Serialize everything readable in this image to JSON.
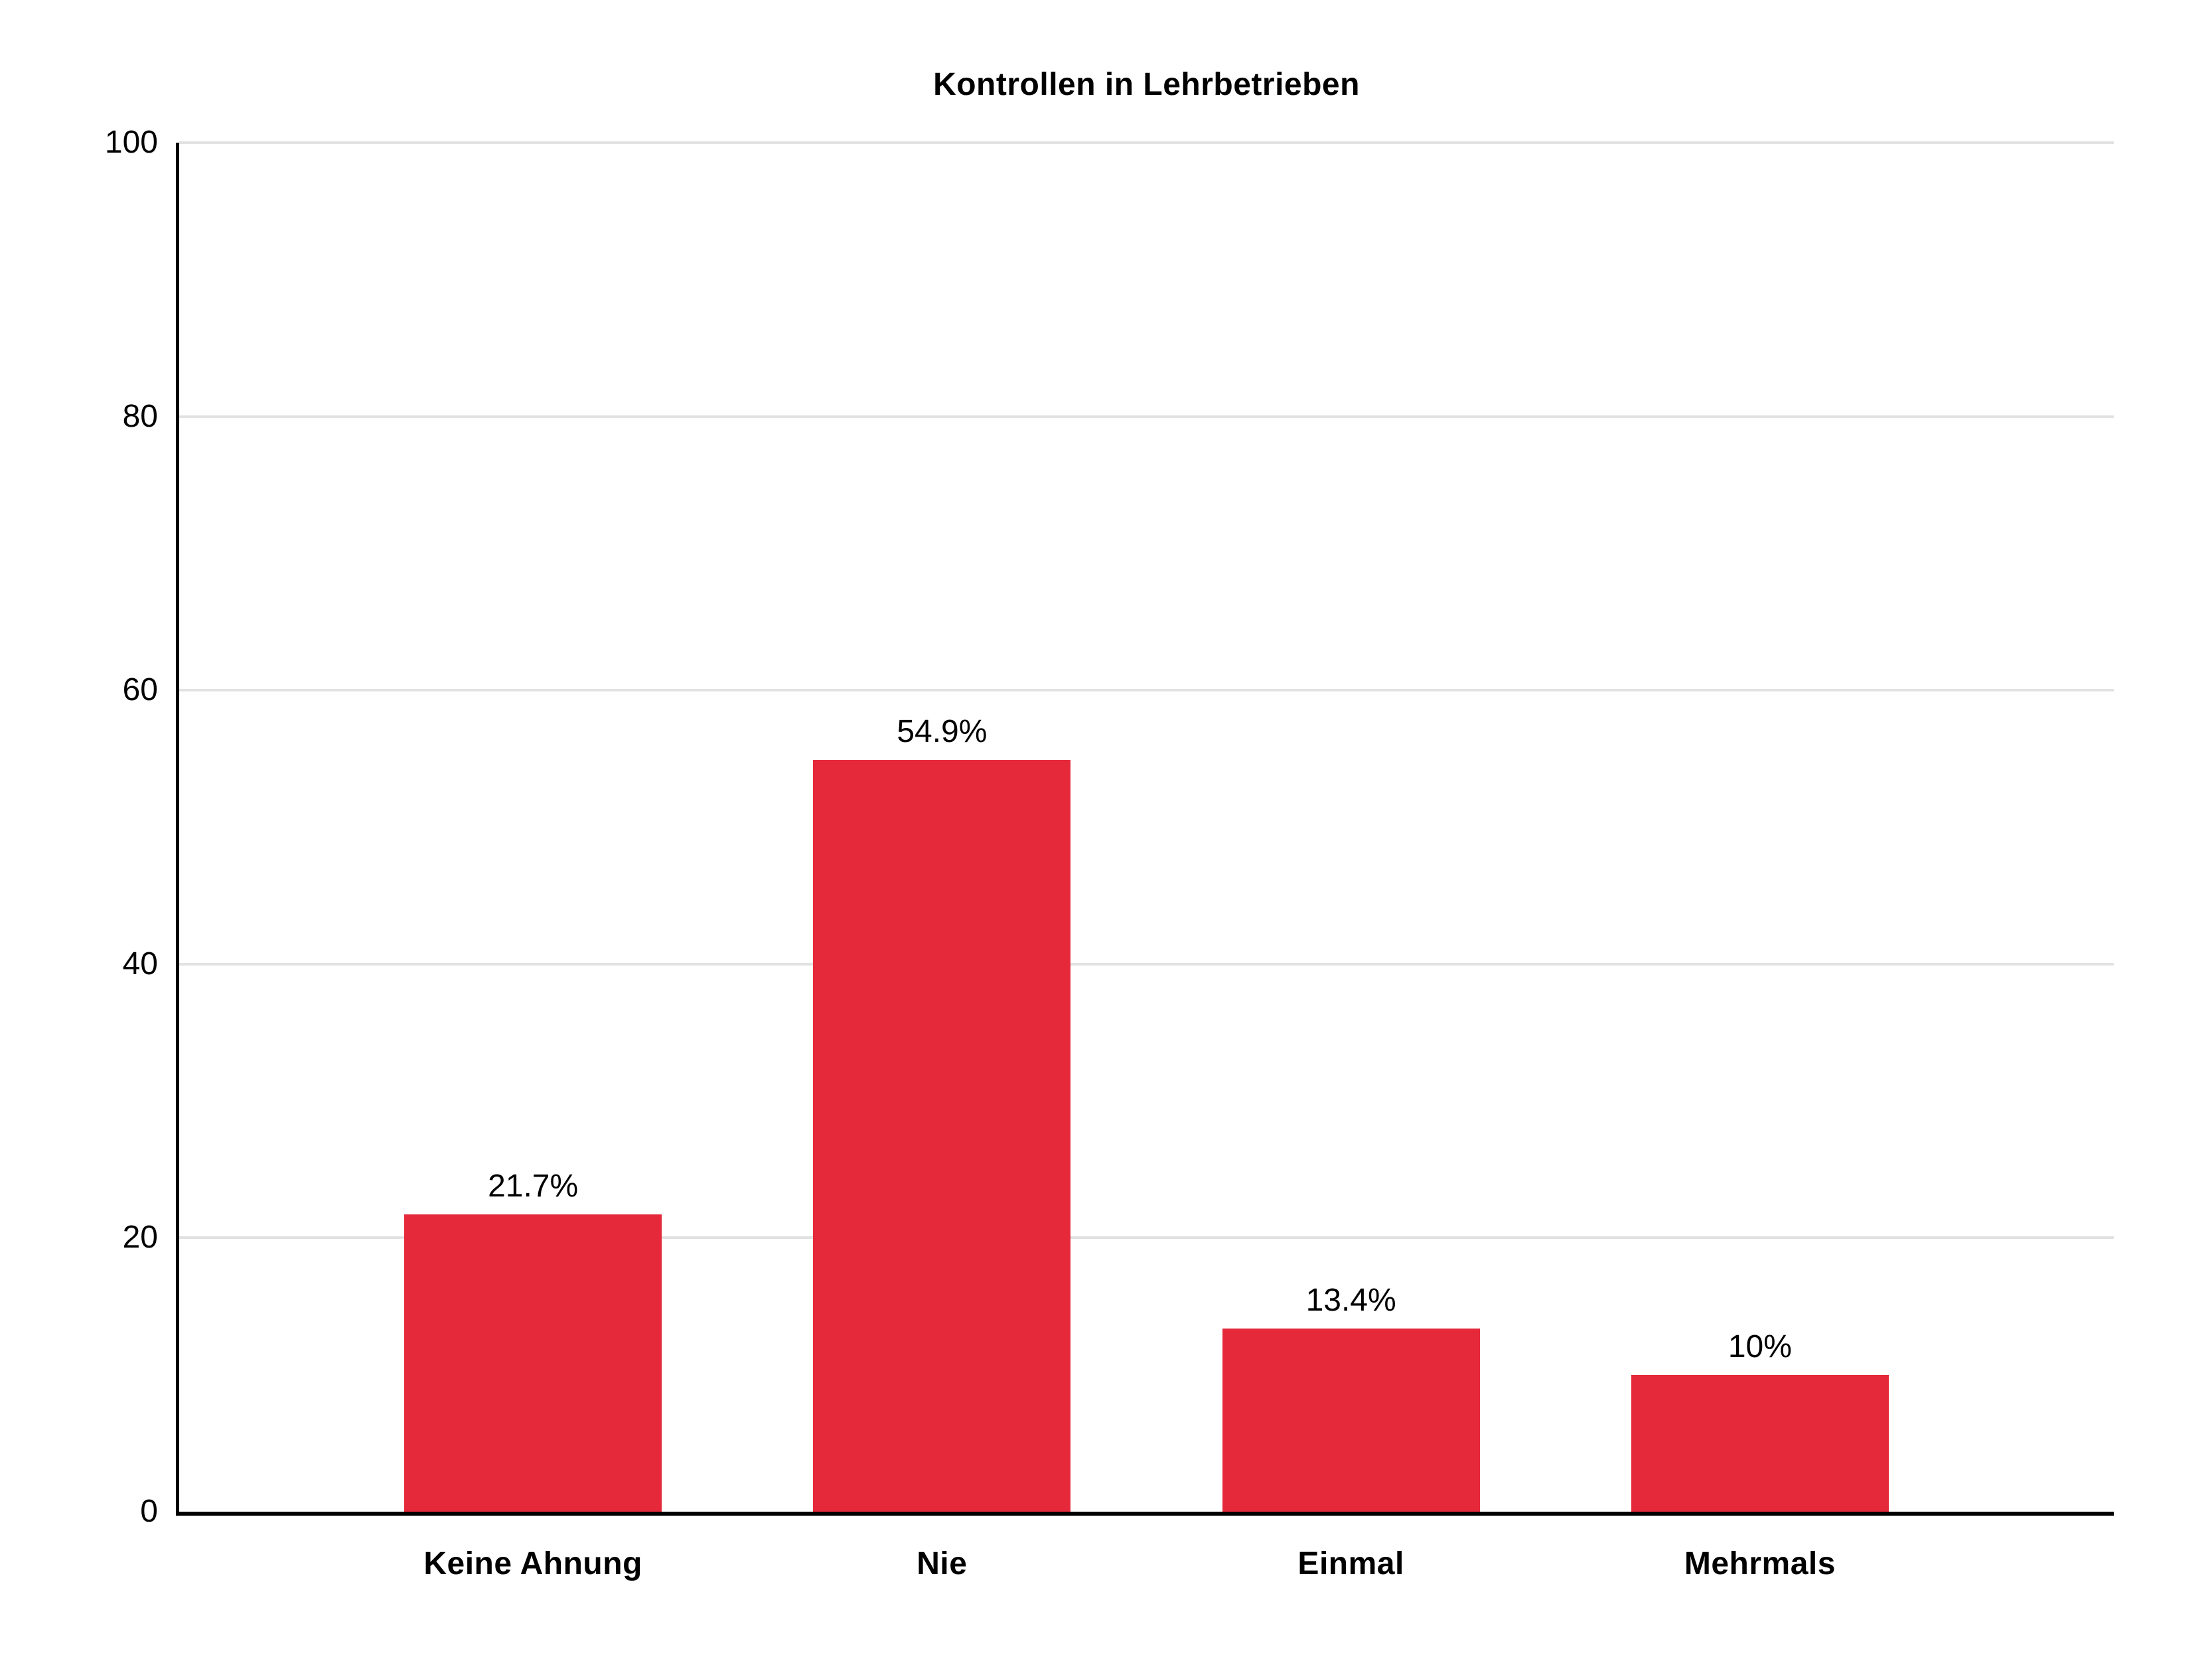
{
  "chart_data": {
    "type": "bar",
    "title": "Kontrollen in Lehrbetrieben",
    "categories": [
      "Keine Ahnung",
      "Nie",
      "Einmal",
      "Mehrmals"
    ],
    "values": [
      21.7,
      54.9,
      13.4,
      10
    ],
    "value_labels": [
      "21.7%",
      "54.9%",
      "13.4%",
      "10%"
    ],
    "xlabel": "",
    "ylabel": "",
    "ylim": [
      0,
      100
    ],
    "yticks": [
      0,
      20,
      40,
      60,
      80,
      100
    ],
    "grid": "horizontal",
    "legend": "none",
    "colors": {
      "bar": "#E5293B",
      "gridline": "#E2E2E2",
      "axis": "#000000",
      "text": "#000000",
      "background": "#FFFFFF"
    }
  }
}
